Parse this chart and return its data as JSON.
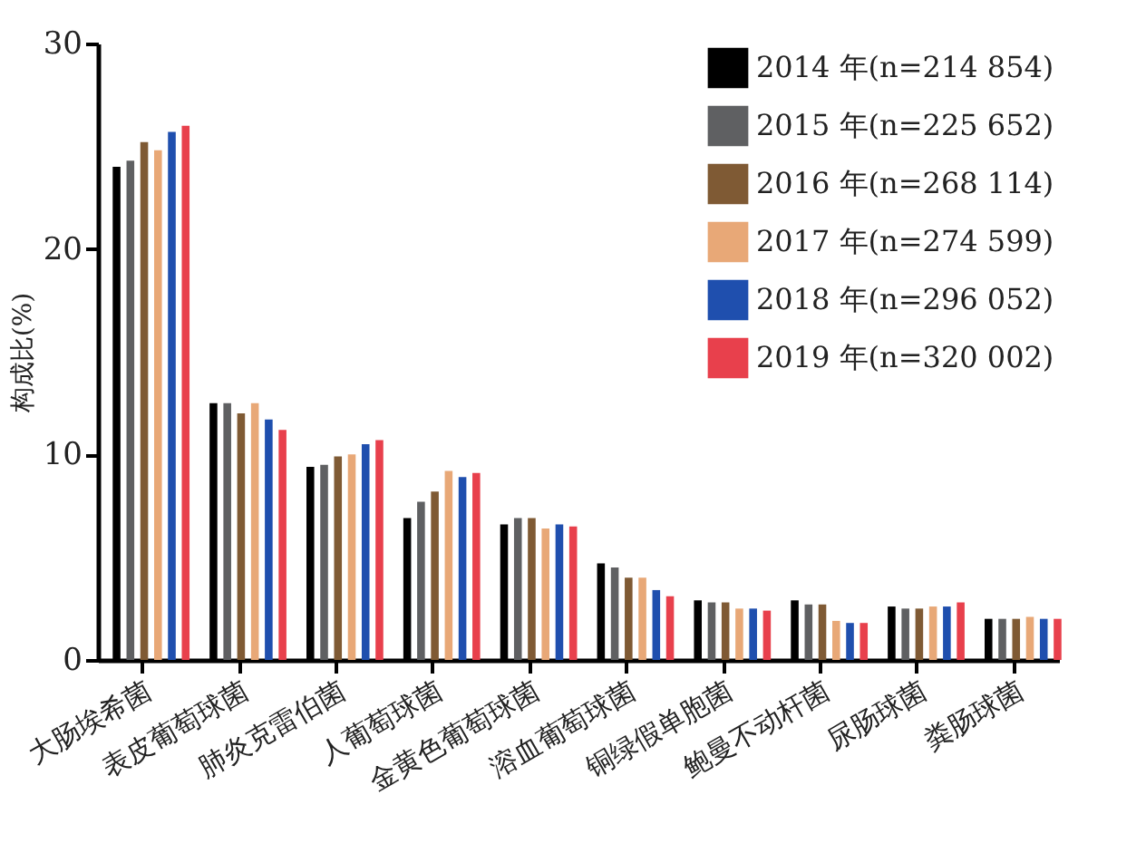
{
  "chart_data": {
    "type": "bar",
    "ylabel": "构成比(%)",
    "categories": [
      "大肠埃希菌",
      "表皮葡萄球菌",
      "肺炎克雷伯菌",
      "人葡萄球菌",
      "金黄色葡萄球菌",
      "溶血葡萄球菌",
      "铜绿假单胞菌",
      "鲍曼不动杆菌",
      "尿肠球菌",
      "粪肠球菌"
    ],
    "series": [
      {
        "name": "2014 年(n=214 854)",
        "color": "#000000",
        "values": [
          24.0,
          12.5,
          9.4,
          6.9,
          6.6,
          4.7,
          2.9,
          2.9,
          2.6,
          2.0
        ]
      },
      {
        "name": "2015 年(n=225 652)",
        "color": "#5f6062",
        "values": [
          24.3,
          12.5,
          9.5,
          7.7,
          6.9,
          4.5,
          2.8,
          2.7,
          2.5,
          2.0
        ]
      },
      {
        "name": "2016 年(n=268 114)",
        "color": "#7f5a34",
        "values": [
          25.2,
          12.0,
          9.9,
          8.2,
          6.9,
          4.0,
          2.8,
          2.7,
          2.5,
          2.0
        ]
      },
      {
        "name": "2017 年(n=274 599)",
        "color": "#e8a877",
        "values": [
          24.8,
          12.5,
          10.0,
          9.2,
          6.4,
          4.0,
          2.5,
          1.9,
          2.6,
          2.1
        ]
      },
      {
        "name": "2018 年(n=296 052)",
        "color": "#1f4fae",
        "values": [
          25.7,
          11.7,
          10.5,
          8.9,
          6.6,
          3.4,
          2.5,
          1.8,
          2.6,
          2.0
        ]
      },
      {
        "name": "2019 年(n=320 002)",
        "color": "#e8404c",
        "values": [
          26.0,
          11.2,
          10.7,
          9.1,
          6.5,
          3.1,
          2.4,
          1.8,
          2.8,
          2.0
        ]
      }
    ],
    "ylim": [
      0,
      30
    ],
    "yticks": [
      0,
      10,
      20,
      30
    ],
    "grid": false,
    "legend": "top right"
  }
}
